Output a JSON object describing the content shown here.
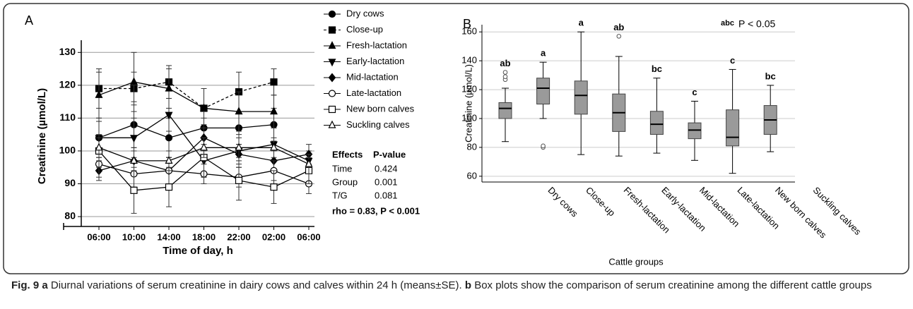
{
  "chart_data": [
    {
      "type": "line",
      "panel_label": "A",
      "y_label": "Creatinine (µmol/L)",
      "x_label": "Time of day, h",
      "categories": [
        "06:00",
        "10:00",
        "14:00",
        "18:00",
        "22:00",
        "02:00",
        "06:00"
      ],
      "ylim": [
        77,
        132
      ],
      "yticks": [
        80,
        90,
        100,
        110,
        120,
        130
      ],
      "grid": true,
      "series": [
        {
          "name": "Dry cows",
          "color": "#000000",
          "marker": "circle",
          "filled": true,
          "dashed": false,
          "values": [
            104,
            108,
            104,
            107,
            107,
            108,
            null
          ],
          "errors": [
            6,
            7,
            6,
            3,
            5,
            5,
            null
          ]
        },
        {
          "name": "Close-up",
          "color": "#000000",
          "marker": "square",
          "filled": true,
          "dashed": true,
          "values": [
            119,
            119,
            121,
            113,
            118,
            121,
            null
          ],
          "errors": [
            6,
            5,
            5,
            6,
            6,
            4,
            null
          ]
        },
        {
          "name": "Fresh-lactation",
          "color": "#000000",
          "marker": "triangle-up",
          "filled": true,
          "dashed": false,
          "values": [
            117,
            121,
            119,
            113,
            112,
            112,
            null
          ],
          "errors": [
            7,
            9,
            6,
            6,
            6,
            5,
            null
          ]
        },
        {
          "name": "Early-lactation",
          "color": "#000000",
          "marker": "triangle-down",
          "filled": true,
          "dashed": false,
          "values": [
            104,
            104,
            111,
            97,
            100,
            102,
            97
          ],
          "errors": [
            5,
            6,
            5,
            5,
            5,
            5,
            3
          ]
        },
        {
          "name": "Mid-lactation",
          "color": "#000000",
          "marker": "diamond",
          "filled": true,
          "dashed": false,
          "values": [
            94,
            97,
            94,
            104,
            99,
            97,
            99
          ],
          "errors": [
            3,
            4,
            4,
            4,
            3,
            3,
            3
          ]
        },
        {
          "name": "Late-lactation",
          "color": "#000000",
          "marker": "circle",
          "filled": false,
          "dashed": false,
          "values": [
            96,
            93,
            94,
            93,
            92,
            94,
            90
          ],
          "errors": [
            4,
            4,
            4,
            3,
            3,
            3,
            3
          ]
        },
        {
          "name": "New born calves",
          "color": "#000000",
          "marker": "square",
          "filled": false,
          "dashed": false,
          "values": [
            100,
            88,
            89,
            98,
            91,
            89,
            94
          ],
          "errors": [
            5,
            7,
            6,
            6,
            6,
            5,
            4
          ]
        },
        {
          "name": "Suckling calves",
          "color": "#000000",
          "marker": "triangle-up",
          "filled": false,
          "dashed": false,
          "values": [
            101,
            97,
            97,
            101,
            101,
            101,
            96
          ],
          "errors": [
            3,
            3,
            3,
            3,
            3,
            3,
            3
          ]
        }
      ],
      "stats_table": {
        "header": [
          "Effects",
          "P-value"
        ],
        "rows": [
          [
            "Time",
            "0.424"
          ],
          [
            "Group",
            "0.001"
          ],
          [
            "T/G",
            "0.081"
          ]
        ]
      },
      "annotation": "rho = 0.83, P < 0.001"
    },
    {
      "type": "box",
      "panel_label": "B",
      "y_label": "Creatinine (µmol/L)",
      "x_label": "Cattle groups",
      "categories": [
        "Dry cows",
        "Close-up",
        "Fresh-lactation",
        "Early-lactation",
        "Mid-lactation",
        "Late-lactation",
        "New born calves",
        "Suckling calves"
      ],
      "ylim": [
        56,
        165
      ],
      "yticks": [
        60,
        80,
        100,
        120,
        140,
        160
      ],
      "grid": true,
      "color": "#9a9a9a",
      "boxes": [
        {
          "whisker_low": 84,
          "q1": 100,
          "median": 107,
          "q3": 111,
          "whisker_high": 121,
          "outliers": [
            127,
            129,
            132
          ],
          "group_label": "ab"
        },
        {
          "whisker_low": 100,
          "q1": 110,
          "median": 121,
          "q3": 128,
          "whisker_high": 139,
          "outliers": [
            80,
            81
          ],
          "group_label": "a"
        },
        {
          "whisker_low": 75,
          "q1": 103,
          "median": 116,
          "q3": 126,
          "whisker_high": 160,
          "outliers": [],
          "group_label": "a"
        },
        {
          "whisker_low": 74,
          "q1": 91,
          "median": 104,
          "q3": 117,
          "whisker_high": 143,
          "outliers": [
            157
          ],
          "group_label": "ab"
        },
        {
          "whisker_low": 76,
          "q1": 89,
          "median": 96,
          "q3": 105,
          "whisker_high": 128,
          "outliers": [],
          "group_label": "bc"
        },
        {
          "whisker_low": 71,
          "q1": 86,
          "median": 92,
          "q3": 97,
          "whisker_high": 112,
          "outliers": [],
          "group_label": "c"
        },
        {
          "whisker_low": 62,
          "q1": 81,
          "median": 87,
          "q3": 106,
          "whisker_high": 134,
          "outliers": [],
          "group_label": "c"
        },
        {
          "whisker_low": 77,
          "q1": 89,
          "median": 99,
          "q3": 109,
          "whisker_high": 123,
          "outliers": [],
          "group_label": "bc"
        }
      ],
      "significance_note": {
        "letters": "abc",
        "text": "P < 0.05"
      }
    }
  ],
  "caption": {
    "figure": "Fig. 9",
    "part_a": "a",
    "text_a": "Diurnal variations of serum creatinine in dairy cows and calves within 24 h (means±SE).",
    "part_b": "b",
    "text_b": "Box plots show the comparison of serum creatinine among the different cattle groups"
  }
}
